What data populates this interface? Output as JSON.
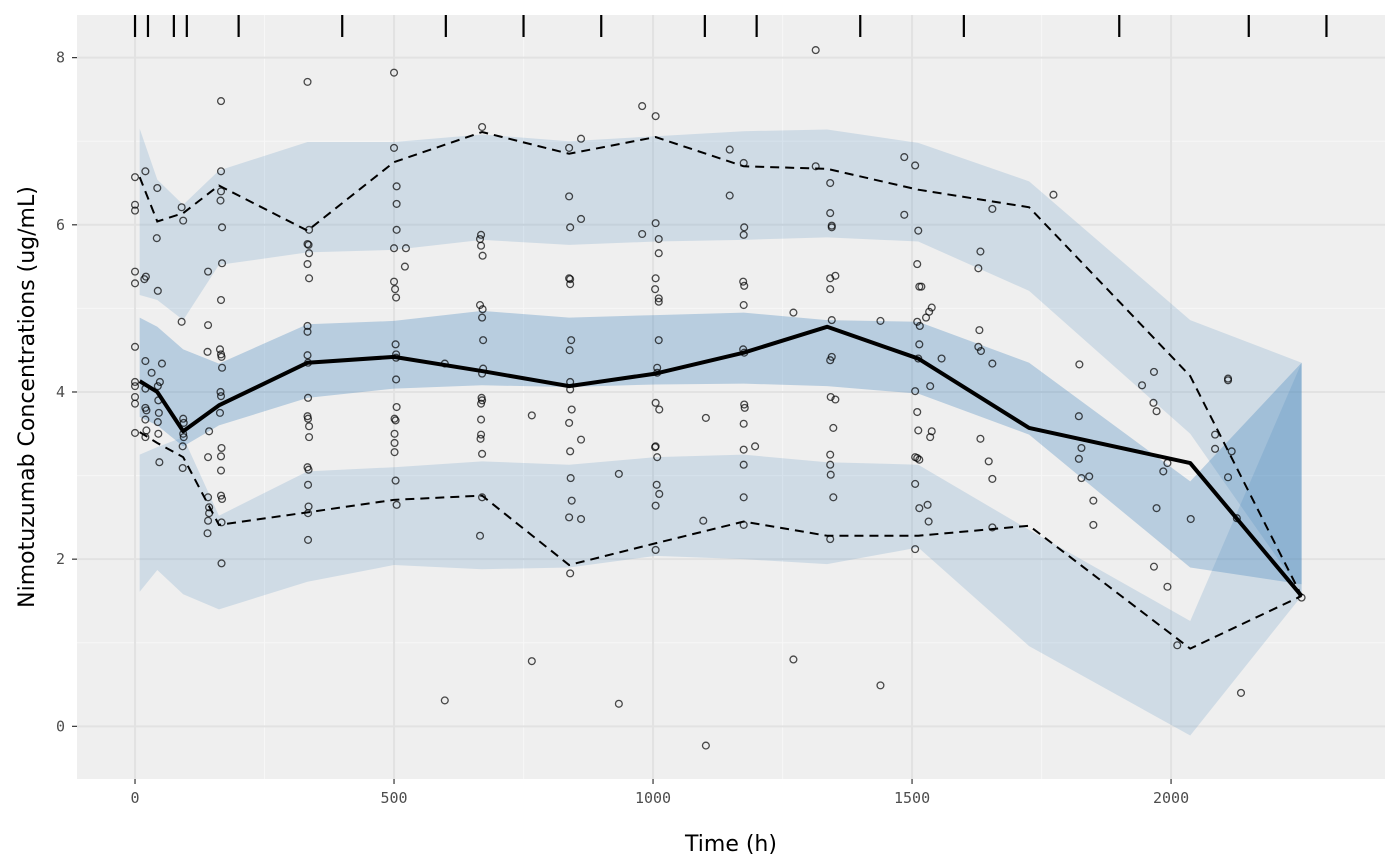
{
  "chart_data": {
    "type": "line",
    "title": "",
    "xlabel": "Time (h)",
    "ylabel": "Nimotuzumab Concentrations (ug/mL)",
    "xlim": [
      -112,
      2413
    ],
    "ylim": [
      -0.63,
      8.51
    ],
    "x_ticks": [
      0,
      500,
      1000,
      1500,
      2000
    ],
    "y_ticks": [
      0,
      2,
      4,
      6,
      8
    ],
    "grid": true,
    "bin_boundaries": [
      0,
      25,
      75,
      100,
      200,
      400,
      600,
      750,
      900,
      1100,
      1200,
      1400,
      1600,
      1900,
      2150,
      2300
    ],
    "bin_x": [
      9,
      43,
      93,
      162,
      333,
      500,
      670,
      838,
      1005,
      1175,
      1336,
      1512,
      1726,
      2037,
      2252
    ],
    "observed_median": [
      4.13,
      4.0,
      3.53,
      3.84,
      4.35,
      4.42,
      4.25,
      4.07,
      4.22,
      4.47,
      4.78,
      4.4,
      3.57,
      3.15,
      1.56
    ],
    "observed_upper": [
      6.57,
      6.04,
      6.14,
      6.47,
      5.93,
      6.75,
      7.11,
      6.85,
      7.05,
      6.7,
      6.67,
      6.42,
      6.21,
      4.19,
      1.56
    ],
    "observed_lower": [
      3.52,
      3.39,
      3.22,
      2.41,
      2.56,
      2.71,
      2.76,
      1.93,
      2.19,
      2.45,
      2.28,
      2.28,
      2.4,
      0.93,
      1.56
    ],
    "bands": [
      {
        "role": "upper",
        "color": "#377eb8",
        "opacity": 0.17,
        "hi": [
          7.15,
          6.54,
          6.24,
          6.65,
          6.99,
          6.99,
          7.08,
          7.0,
          7.06,
          7.12,
          7.14,
          6.98,
          6.52,
          4.86,
          4.35
        ],
        "lo": [
          5.16,
          5.1,
          4.86,
          5.52,
          5.67,
          5.7,
          5.82,
          5.76,
          5.8,
          5.82,
          5.85,
          5.8,
          5.21,
          3.5,
          1.6
        ]
      },
      {
        "role": "median",
        "color": "#377eb8",
        "opacity": 0.3,
        "hi": [
          4.89,
          4.78,
          4.51,
          4.34,
          4.81,
          4.85,
          4.97,
          4.89,
          4.92,
          4.95,
          4.86,
          4.84,
          4.35,
          2.93,
          4.35
        ],
        "lo": [
          3.7,
          3.6,
          3.35,
          3.6,
          3.93,
          4.04,
          4.08,
          4.06,
          4.09,
          4.1,
          4.07,
          3.98,
          3.49,
          1.9,
          1.7
        ]
      },
      {
        "role": "lower",
        "color": "#377eb8",
        "opacity": 0.17,
        "hi": [
          3.25,
          3.34,
          3.46,
          2.52,
          3.05,
          3.1,
          3.17,
          3.13,
          3.22,
          3.25,
          3.16,
          3.13,
          2.35,
          1.26,
          4.35
        ],
        "lo": [
          1.61,
          1.87,
          1.58,
          1.4,
          1.73,
          1.93,
          1.88,
          1.9,
          2.04,
          2.0,
          1.94,
          2.14,
          0.96,
          -0.11,
          1.56
        ]
      }
    ],
    "observations": [
      [
        0,
        6.57
      ],
      [
        0,
        6.24
      ],
      [
        0,
        6.17
      ],
      [
        0,
        5.44
      ],
      [
        0,
        5.3
      ],
      [
        0,
        4.54
      ],
      [
        0,
        4.12
      ],
      [
        0,
        4.07
      ],
      [
        0,
        3.94
      ],
      [
        0,
        3.86
      ],
      [
        0,
        3.51
      ],
      [
        20,
        6.64
      ],
      [
        18,
        5.35
      ],
      [
        21,
        5.38
      ],
      [
        20,
        4.37
      ],
      [
        20,
        4.04
      ],
      [
        20,
        3.81
      ],
      [
        22,
        3.78
      ],
      [
        20,
        3.67
      ],
      [
        22,
        3.54
      ],
      [
        20,
        3.46
      ],
      [
        32,
        4.23
      ],
      [
        43,
        6.44
      ],
      [
        42,
        5.84
      ],
      [
        44,
        5.21
      ],
      [
        44,
        4.07
      ],
      [
        48,
        4.12
      ],
      [
        52,
        4.34
      ],
      [
        45,
        3.9
      ],
      [
        46,
        3.75
      ],
      [
        44,
        3.64
      ],
      [
        45,
        3.5
      ],
      [
        47,
        3.16
      ],
      [
        90,
        6.21
      ],
      [
        90,
        4.84
      ],
      [
        93,
        6.05
      ],
      [
        93,
        3.68
      ],
      [
        94,
        3.63
      ],
      [
        93,
        3.5
      ],
      [
        94,
        3.46
      ],
      [
        92,
        3.35
      ],
      [
        92,
        3.09
      ],
      [
        141,
        5.44
      ],
      [
        141,
        4.8
      ],
      [
        140,
        4.48
      ],
      [
        143,
        3.53
      ],
      [
        141,
        3.22
      ],
      [
        141,
        2.74
      ],
      [
        143,
        2.62
      ],
      [
        143,
        2.55
      ],
      [
        141,
        2.46
      ],
      [
        140,
        2.31
      ],
      [
        166,
        7.48
      ],
      [
        166,
        6.64
      ],
      [
        166,
        6.4
      ],
      [
        165,
        6.29
      ],
      [
        168,
        5.97
      ],
      [
        168,
        5.54
      ],
      [
        166,
        5.1
      ],
      [
        164,
        4.51
      ],
      [
        166,
        4.45
      ],
      [
        167,
        4.42
      ],
      [
        168,
        4.29
      ],
      [
        165,
        4.0
      ],
      [
        166,
        3.95
      ],
      [
        164,
        3.75
      ],
      [
        167,
        3.33
      ],
      [
        166,
        3.23
      ],
      [
        166,
        3.06
      ],
      [
        166,
        2.76
      ],
      [
        168,
        2.72
      ],
      [
        167,
        2.44
      ],
      [
        167,
        1.95
      ],
      [
        333,
        7.71
      ],
      [
        336,
        5.94
      ],
      [
        333,
        5.77
      ],
      [
        335,
        5.76
      ],
      [
        336,
        5.66
      ],
      [
        333,
        5.53
      ],
      [
        336,
        5.36
      ],
      [
        333,
        4.79
      ],
      [
        333,
        4.72
      ],
      [
        333,
        4.44
      ],
      [
        334,
        4.35
      ],
      [
        334,
        3.93
      ],
      [
        333,
        3.71
      ],
      [
        334,
        3.68
      ],
      [
        336,
        3.59
      ],
      [
        336,
        3.46
      ],
      [
        333,
        3.1
      ],
      [
        335,
        3.07
      ],
      [
        334,
        2.89
      ],
      [
        335,
        2.63
      ],
      [
        334,
        2.55
      ],
      [
        334,
        2.23
      ],
      [
        500,
        7.82
      ],
      [
        500,
        6.92
      ],
      [
        505,
        6.46
      ],
      [
        505,
        6.25
      ],
      [
        505,
        5.94
      ],
      [
        500,
        5.72
      ],
      [
        500,
        5.32
      ],
      [
        502,
        5.23
      ],
      [
        504,
        5.13
      ],
      [
        503,
        4.57
      ],
      [
        504,
        4.45
      ],
      [
        504,
        4.41
      ],
      [
        504,
        4.15
      ],
      [
        505,
        3.82
      ],
      [
        501,
        3.68
      ],
      [
        503,
        3.66
      ],
      [
        501,
        3.5
      ],
      [
        501,
        3.39
      ],
      [
        501,
        3.28
      ],
      [
        503,
        2.94
      ],
      [
        505,
        2.65
      ],
      [
        523,
        5.72
      ],
      [
        521,
        5.5
      ],
      [
        598,
        4.34
      ],
      [
        598,
        0.31
      ],
      [
        670,
        7.17
      ],
      [
        668,
        5.88
      ],
      [
        666,
        5.83
      ],
      [
        668,
        5.75
      ],
      [
        671,
        5.63
      ],
      [
        666,
        5.04
      ],
      [
        671,
        4.99
      ],
      [
        670,
        4.89
      ],
      [
        672,
        4.62
      ],
      [
        672,
        4.28
      ],
      [
        670,
        4.22
      ],
      [
        669,
        3.93
      ],
      [
        670,
        3.9
      ],
      [
        668,
        3.86
      ],
      [
        668,
        3.67
      ],
      [
        668,
        3.49
      ],
      [
        667,
        3.44
      ],
      [
        670,
        3.26
      ],
      [
        670,
        2.74
      ],
      [
        666,
        2.28
      ],
      [
        766,
        3.72
      ],
      [
        766,
        0.78
      ],
      [
        838,
        6.92
      ],
      [
        838,
        6.34
      ],
      [
        840,
        5.97
      ],
      [
        838,
        5.36
      ],
      [
        840,
        5.35
      ],
      [
        840,
        5.29
      ],
      [
        842,
        4.62
      ],
      [
        839,
        4.5
      ],
      [
        840,
        4.12
      ],
      [
        840,
        4.03
      ],
      [
        843,
        3.79
      ],
      [
        838,
        3.63
      ],
      [
        840,
        3.29
      ],
      [
        841,
        2.97
      ],
      [
        843,
        2.7
      ],
      [
        838,
        2.5
      ],
      [
        840,
        1.83
      ],
      [
        861,
        7.03
      ],
      [
        861,
        6.07
      ],
      [
        861,
        3.43
      ],
      [
        861,
        2.48
      ],
      [
        934,
        3.02
      ],
      [
        934,
        0.27
      ],
      [
        979,
        7.42
      ],
      [
        979,
        5.89
      ],
      [
        1005,
        7.3
      ],
      [
        1005,
        6.02
      ],
      [
        1011,
        5.83
      ],
      [
        1011,
        5.66
      ],
      [
        1005,
        5.36
      ],
      [
        1004,
        5.23
      ],
      [
        1011,
        5.12
      ],
      [
        1011,
        5.08
      ],
      [
        1011,
        4.62
      ],
      [
        1008,
        4.29
      ],
      [
        1008,
        4.23
      ],
      [
        1005,
        3.87
      ],
      [
        1012,
        3.79
      ],
      [
        1005,
        3.35
      ],
      [
        1004,
        3.34
      ],
      [
        1008,
        3.22
      ],
      [
        1007,
        2.89
      ],
      [
        1012,
        2.78
      ],
      [
        1005,
        2.64
      ],
      [
        1005,
        2.11
      ],
      [
        1097,
        2.46
      ],
      [
        1102,
        3.69
      ],
      [
        1102,
        -0.23
      ],
      [
        1148,
        6.9
      ],
      [
        1148,
        6.35
      ],
      [
        1175,
        6.74
      ],
      [
        1176,
        5.97
      ],
      [
        1175,
        5.88
      ],
      [
        1174,
        5.32
      ],
      [
        1176,
        5.27
      ],
      [
        1175,
        5.04
      ],
      [
        1174,
        4.51
      ],
      [
        1176,
        4.47
      ],
      [
        1176,
        3.85
      ],
      [
        1177,
        3.81
      ],
      [
        1175,
        3.62
      ],
      [
        1175,
        3.31
      ],
      [
        1175,
        3.13
      ],
      [
        1175,
        2.74
      ],
      [
        1175,
        2.41
      ],
      [
        1197,
        3.35
      ],
      [
        1271,
        4.95
      ],
      [
        1271,
        0.8
      ],
      [
        1314,
        8.09
      ],
      [
        1314,
        6.7
      ],
      [
        1342,
        6.5
      ],
      [
        1342,
        6.14
      ],
      [
        1345,
        5.99
      ],
      [
        1345,
        5.97
      ],
      [
        1342,
        5.36
      ],
      [
        1342,
        5.23
      ],
      [
        1345,
        4.86
      ],
      [
        1345,
        4.42
      ],
      [
        1342,
        4.38
      ],
      [
        1343,
        3.94
      ],
      [
        1348,
        3.57
      ],
      [
        1342,
        3.25
      ],
      [
        1342,
        3.13
      ],
      [
        1343,
        3.01
      ],
      [
        1348,
        2.74
      ],
      [
        1342,
        2.24
      ],
      [
        1352,
        5.39
      ],
      [
        1352,
        3.91
      ],
      [
        1439,
        4.85
      ],
      [
        1439,
        0.49
      ],
      [
        1485,
        6.81
      ],
      [
        1485,
        6.12
      ],
      [
        1506,
        6.71
      ],
      [
        1506,
        4.01
      ],
      [
        1506,
        3.22
      ],
      [
        1506,
        2.9
      ],
      [
        1506,
        2.12
      ],
      [
        1512,
        5.93
      ],
      [
        1510,
        5.53
      ],
      [
        1514,
        5.26
      ],
      [
        1518,
        5.26
      ],
      [
        1510,
        4.84
      ],
      [
        1515,
        4.79
      ],
      [
        1514,
        4.57
      ],
      [
        1512,
        4.4
      ],
      [
        1510,
        3.76
      ],
      [
        1512,
        3.54
      ],
      [
        1510,
        3.21
      ],
      [
        1514,
        3.19
      ],
      [
        1514,
        2.61
      ],
      [
        1538,
        5.01
      ],
      [
        1533,
        4.96
      ],
      [
        1527,
        4.89
      ],
      [
        1535,
        4.07
      ],
      [
        1538,
        3.53
      ],
      [
        1535,
        3.46
      ],
      [
        1530,
        2.65
      ],
      [
        1532,
        2.45
      ],
      [
        1557,
        4.4
      ],
      [
        1655,
        6.19
      ],
      [
        1655,
        4.34
      ],
      [
        1655,
        2.96
      ],
      [
        1655,
        2.38
      ],
      [
        1632,
        5.68
      ],
      [
        1628,
        5.48
      ],
      [
        1630,
        4.74
      ],
      [
        1628,
        4.54
      ],
      [
        1633,
        4.49
      ],
      [
        1632,
        3.44
      ],
      [
        1648,
        3.17
      ],
      [
        1773,
        6.36
      ],
      [
        1823,
        4.33
      ],
      [
        1822,
        3.71
      ],
      [
        1822,
        3.2
      ],
      [
        1827,
        3.33
      ],
      [
        1827,
        2.97
      ],
      [
        1842,
        2.99
      ],
      [
        1850,
        2.7
      ],
      [
        1850,
        2.41
      ],
      [
        1944,
        4.08
      ],
      [
        1967,
        4.24
      ],
      [
        1967,
        1.91
      ],
      [
        1966,
        3.87
      ],
      [
        1972,
        3.77
      ],
      [
        1972,
        2.61
      ],
      [
        1985,
        3.05
      ],
      [
        1993,
        3.15
      ],
      [
        1993,
        1.67
      ],
      [
        2012,
        0.97
      ],
      [
        2038,
        2.48
      ],
      [
        2085,
        3.49
      ],
      [
        2085,
        3.32
      ],
      [
        2110,
        4.16
      ],
      [
        2110,
        4.14
      ],
      [
        2110,
        2.98
      ],
      [
        2117,
        3.29
      ],
      [
        2127,
        2.49
      ],
      [
        2135,
        0.4
      ],
      [
        2252,
        1.54
      ]
    ]
  }
}
